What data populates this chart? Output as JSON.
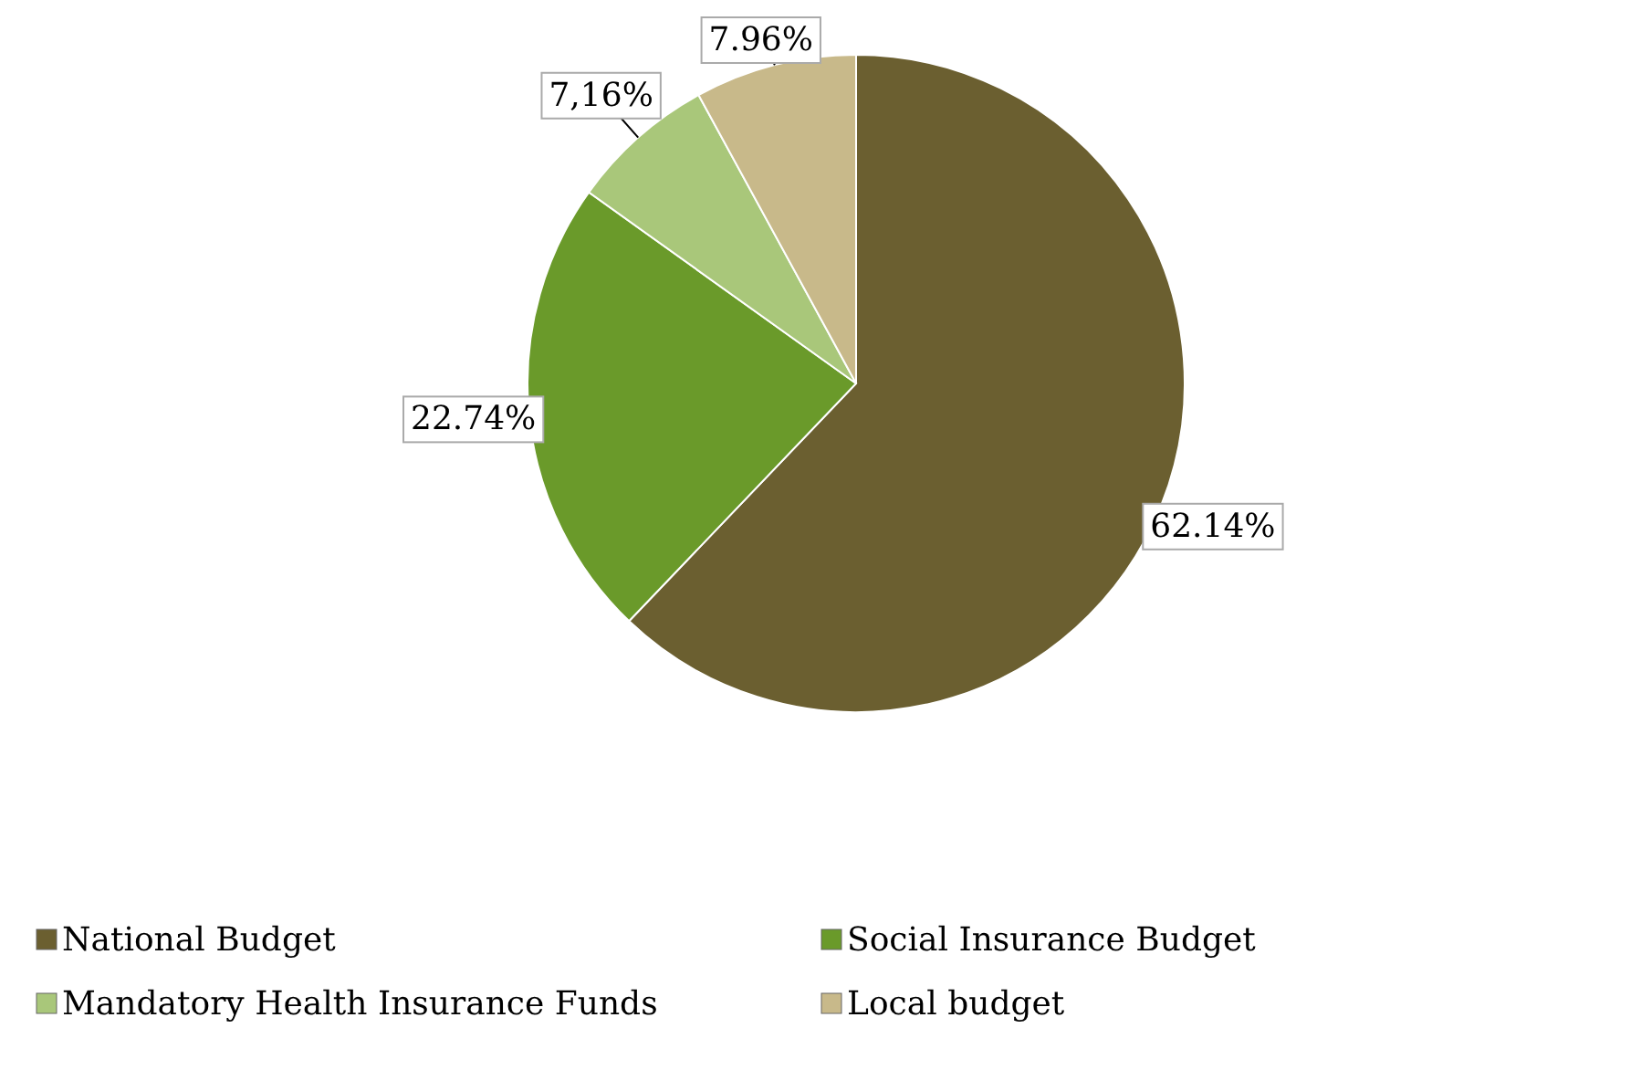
{
  "chart_data": {
    "type": "pie",
    "categories": [
      "National Budget",
      "Social Insurance Budget",
      "Mandatory Health Insurance Funds",
      "Local budget"
    ],
    "values": [
      62.14,
      22.74,
      7.16,
      7.96
    ],
    "colors": [
      "#6b5f30",
      "#6a9a2a",
      "#a9c77a",
      "#c8b98a"
    ],
    "value_labels": [
      "62.14%",
      "22.74%",
      "7,16%",
      "7.96%"
    ],
    "legend": "bottom"
  }
}
